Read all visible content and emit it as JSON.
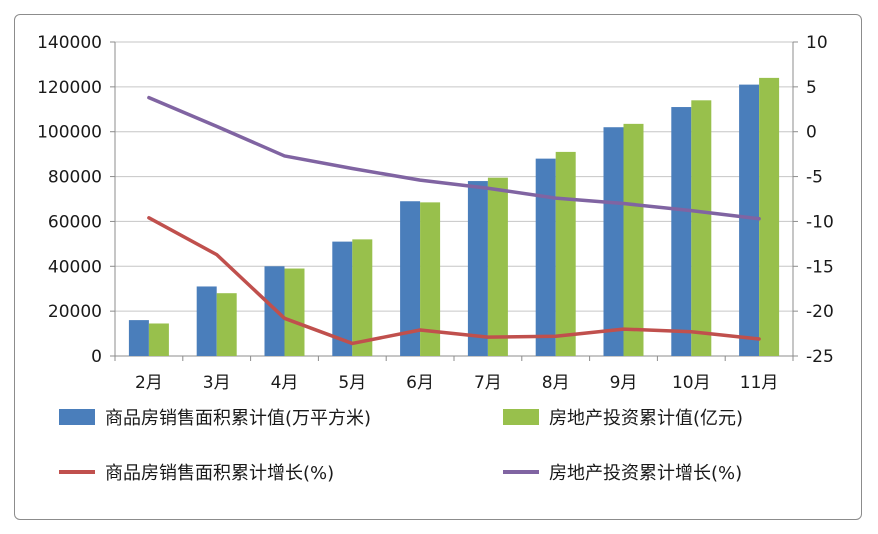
{
  "chart_data": {
    "type": "bar",
    "categories": [
      "2月",
      "3月",
      "4月",
      "5月",
      "6月",
      "7月",
      "8月",
      "9月",
      "10月",
      "11月"
    ],
    "y_left": {
      "min": 0,
      "max": 140000,
      "step": 20000,
      "ticks": [
        "0",
        "20000",
        "40000",
        "60000",
        "80000",
        "100000",
        "120000",
        "140000"
      ]
    },
    "y_right": {
      "min": -25,
      "max": 10,
      "step": 5,
      "ticks": [
        "10",
        "5",
        "0",
        "-5",
        "-10",
        "-15",
        "-20",
        "-25"
      ]
    },
    "grid": true,
    "legend_position": "bottom",
    "series": [
      {
        "name": "商品房销售面积累计值(万平方米)",
        "type": "bar",
        "axis": "left",
        "color": "#4a7ebb",
        "values": [
          16000,
          31000,
          40000,
          51000,
          69000,
          78000,
          88000,
          102000,
          111000,
          121000
        ]
      },
      {
        "name": "房地产投资累计值(亿元)",
        "type": "bar",
        "axis": "left",
        "color": "#98c04c",
        "values": [
          14500,
          28000,
          39000,
          52000,
          68500,
          79500,
          91000,
          103500,
          114000,
          124000
        ]
      },
      {
        "name": "商品房销售面积累计增长(%)",
        "type": "line",
        "axis": "right",
        "color": "#c0504d",
        "values": [
          -9.6,
          -13.7,
          -20.8,
          -23.6,
          -22.1,
          -22.9,
          -22.8,
          -22.0,
          -22.3,
          -23.1
        ]
      },
      {
        "name": "房地产投资累计增长(%)",
        "type": "line",
        "axis": "right",
        "color": "#8064a2",
        "values": [
          3.8,
          0.6,
          -2.7,
          -4.1,
          -5.4,
          -6.3,
          -7.4,
          -8.0,
          -8.8,
          -9.7
        ]
      }
    ]
  }
}
